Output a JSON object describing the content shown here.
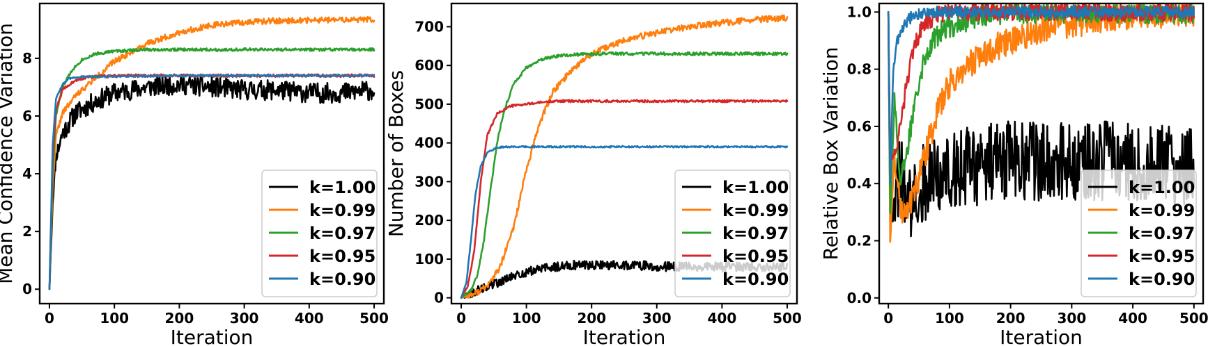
{
  "colors": {
    "k100": "#000000",
    "k099": "#ff7f0e",
    "k097": "#2ca02c",
    "k095": "#d62728",
    "k090": "#1f77b4"
  },
  "chart_data": [
    {
      "type": "line",
      "xlabel": "Iteration",
      "ylabel": "Mean Confidence Variation",
      "xlim": [
        -15,
        515
      ],
      "ylim": [
        -0.5,
        9.9
      ],
      "xticks": [
        0,
        100,
        200,
        300,
        400,
        500
      ],
      "yticks": [
        0,
        2,
        4,
        6,
        8
      ],
      "legend": "lower-right",
      "series": [
        {
          "name": "k=1.00",
          "color": "#000000",
          "noise": 0.35,
          "seed": 11,
          "points": [
            [
              0,
              0
            ],
            [
              5,
              3.0
            ],
            [
              10,
              4.6
            ],
            [
              20,
              5.4
            ],
            [
              40,
              6.1
            ],
            [
              70,
              6.5
            ],
            [
              100,
              6.8
            ],
            [
              150,
              7.0
            ],
            [
              200,
              7.1
            ],
            [
              250,
              7.0
            ],
            [
              300,
              6.9
            ],
            [
              350,
              6.9
            ],
            [
              400,
              6.8
            ],
            [
              450,
              6.8
            ],
            [
              500,
              6.9
            ]
          ]
        },
        {
          "name": "k=0.99",
          "color": "#ff7f0e",
          "noise": 0.1,
          "seed": 22,
          "points": [
            [
              0,
              0
            ],
            [
              5,
              3.5
            ],
            [
              10,
              5.3
            ],
            [
              20,
              6.1
            ],
            [
              40,
              6.7
            ],
            [
              70,
              7.3
            ],
            [
              100,
              7.9
            ],
            [
              150,
              8.5
            ],
            [
              200,
              8.9
            ],
            [
              250,
              9.15
            ],
            [
              300,
              9.25
            ],
            [
              350,
              9.3
            ],
            [
              400,
              9.32
            ],
            [
              450,
              9.33
            ],
            [
              500,
              9.35
            ]
          ]
        },
        {
          "name": "k=0.97",
          "color": "#2ca02c",
          "noise": 0.05,
          "seed": 33,
          "points": [
            [
              0,
              0
            ],
            [
              5,
              4.0
            ],
            [
              10,
              6.0
            ],
            [
              20,
              7.0
            ],
            [
              35,
              7.6
            ],
            [
              50,
              7.95
            ],
            [
              70,
              8.15
            ],
            [
              100,
              8.25
            ],
            [
              150,
              8.3
            ],
            [
              200,
              8.3
            ],
            [
              300,
              8.3
            ],
            [
              400,
              8.3
            ],
            [
              500,
              8.3
            ]
          ]
        },
        {
          "name": "k=0.95",
          "color": "#d62728",
          "noise": 0.05,
          "seed": 44,
          "points": [
            [
              0,
              0
            ],
            [
              5,
              4.5
            ],
            [
              10,
              6.2
            ],
            [
              20,
              6.9
            ],
            [
              40,
              7.25
            ],
            [
              60,
              7.35
            ],
            [
              80,
              7.38
            ],
            [
              150,
              7.4
            ],
            [
              300,
              7.4
            ],
            [
              500,
              7.4
            ]
          ]
        },
        {
          "name": "k=0.90",
          "color": "#1f77b4",
          "noise": 0.03,
          "seed": 55,
          "points": [
            [
              0,
              0
            ],
            [
              5,
              5.0
            ],
            [
              10,
              6.6
            ],
            [
              20,
              7.1
            ],
            [
              30,
              7.3
            ],
            [
              50,
              7.36
            ],
            [
              100,
              7.38
            ],
            [
              300,
              7.4
            ],
            [
              500,
              7.4
            ]
          ]
        }
      ]
    },
    {
      "type": "line",
      "xlabel": "Iteration",
      "ylabel": "Number of Boxes",
      "xlim": [
        -15,
        515
      ],
      "ylim": [
        -15,
        760
      ],
      "xticks": [
        0,
        100,
        200,
        300,
        400,
        500
      ],
      "yticks": [
        0,
        100,
        200,
        300,
        400,
        500,
        600,
        700
      ],
      "legend": "lower-right",
      "series": [
        {
          "name": "k=1.00",
          "color": "#000000",
          "noise": 12,
          "seed": 66,
          "points": [
            [
              0,
              0
            ],
            [
              20,
              15
            ],
            [
              50,
              35
            ],
            [
              80,
              55
            ],
            [
              120,
              75
            ],
            [
              170,
              85
            ],
            [
              250,
              85
            ],
            [
              320,
              80
            ],
            [
              400,
              80
            ],
            [
              500,
              80
            ]
          ]
        },
        {
          "name": "k=0.99",
          "color": "#ff7f0e",
          "noise": 8,
          "seed": 77,
          "points": [
            [
              0,
              0
            ],
            [
              20,
              10
            ],
            [
              40,
              30
            ],
            [
              60,
              80
            ],
            [
              80,
              180
            ],
            [
              100,
              330
            ],
            [
              120,
              450
            ],
            [
              140,
              530
            ],
            [
              170,
              590
            ],
            [
              200,
              630
            ],
            [
              250,
              665
            ],
            [
              300,
              685
            ],
            [
              350,
              700
            ],
            [
              400,
              710
            ],
            [
              450,
              718
            ],
            [
              500,
              722
            ]
          ]
        },
        {
          "name": "k=0.97",
          "color": "#2ca02c",
          "noise": 4,
          "seed": 88,
          "points": [
            [
              0,
              0
            ],
            [
              15,
              20
            ],
            [
              25,
              60
            ],
            [
              35,
              150
            ],
            [
              45,
              280
            ],
            [
              55,
              400
            ],
            [
              65,
              480
            ],
            [
              80,
              550
            ],
            [
              100,
              595
            ],
            [
              130,
              620
            ],
            [
              170,
              628
            ],
            [
              230,
              630
            ],
            [
              300,
              630
            ],
            [
              400,
              630
            ],
            [
              500,
              630
            ]
          ]
        },
        {
          "name": "k=0.95",
          "color": "#d62728",
          "noise": 3,
          "seed": 99,
          "points": [
            [
              0,
              0
            ],
            [
              10,
              30
            ],
            [
              20,
              120
            ],
            [
              30,
              300
            ],
            [
              40,
              420
            ],
            [
              55,
              475
            ],
            [
              75,
              495
            ],
            [
              100,
              500
            ],
            [
              140,
              508
            ],
            [
              200,
              508
            ],
            [
              300,
              508
            ],
            [
              500,
              508
            ]
          ]
        },
        {
          "name": "k=0.90",
          "color": "#1f77b4",
          "noise": 2,
          "seed": 111,
          "points": [
            [
              0,
              0
            ],
            [
              8,
              40
            ],
            [
              15,
              150
            ],
            [
              22,
              270
            ],
            [
              30,
              340
            ],
            [
              40,
              375
            ],
            [
              55,
              388
            ],
            [
              70,
              390
            ],
            [
              200,
              390
            ],
            [
              500,
              390
            ]
          ]
        }
      ]
    },
    {
      "type": "line",
      "xlabel": "Iteration",
      "ylabel": "Relative Box Variation",
      "xlim": [
        -15,
        515
      ],
      "ylim": [
        -0.02,
        1.03
      ],
      "xticks": [
        0,
        100,
        200,
        300,
        400,
        500
      ],
      "yticks": [
        "0.0",
        "0.2",
        "0.4",
        "0.6",
        "0.8",
        "1.0"
      ],
      "legend": "lower-right",
      "series": [
        {
          "name": "k=1.00",
          "color": "#000000",
          "noise": 0.14,
          "seed": 121,
          "points": [
            [
              0,
              1.0
            ],
            [
              3,
              0.3
            ],
            [
              10,
              0.35
            ],
            [
              20,
              0.45
            ],
            [
              30,
              0.3
            ],
            [
              50,
              0.4
            ],
            [
              100,
              0.45
            ],
            [
              200,
              0.48
            ],
            [
              300,
              0.48
            ],
            [
              400,
              0.48
            ],
            [
              500,
              0.45
            ]
          ]
        },
        {
          "name": "k=0.99",
          "color": "#ff7f0e",
          "noise": 0.05,
          "seed": 131,
          "points": [
            [
              0,
              1.0
            ],
            [
              3,
              0.2
            ],
            [
              10,
              0.5
            ],
            [
              20,
              0.3
            ],
            [
              40,
              0.35
            ],
            [
              60,
              0.5
            ],
            [
              80,
              0.65
            ],
            [
              100,
              0.75
            ],
            [
              150,
              0.85
            ],
            [
              200,
              0.9
            ],
            [
              250,
              0.94
            ],
            [
              300,
              0.96
            ],
            [
              400,
              0.99
            ],
            [
              500,
              1.0
            ]
          ]
        },
        {
          "name": "k=0.97",
          "color": "#2ca02c",
          "noise": 0.04,
          "seed": 141,
          "points": [
            [
              0,
              1.0
            ],
            [
              3,
              0.3
            ],
            [
              10,
              0.7
            ],
            [
              20,
              0.4
            ],
            [
              30,
              0.5
            ],
            [
              45,
              0.72
            ],
            [
              60,
              0.85
            ],
            [
              80,
              0.92
            ],
            [
              100,
              0.95
            ],
            [
              150,
              0.99
            ],
            [
              200,
              1.0
            ],
            [
              500,
              1.0
            ]
          ]
        },
        {
          "name": "k=0.95",
          "color": "#d62728",
          "noise": 0.03,
          "seed": 151,
          "points": [
            [
              0,
              1.0
            ],
            [
              3,
              0.5
            ],
            [
              10,
              0.5
            ],
            [
              20,
              0.6
            ],
            [
              30,
              0.75
            ],
            [
              45,
              0.9
            ],
            [
              60,
              0.96
            ],
            [
              80,
              0.99
            ],
            [
              100,
              1.0
            ],
            [
              500,
              1.0
            ]
          ]
        },
        {
          "name": "k=0.90",
          "color": "#1f77b4",
          "noise": 0.02,
          "seed": 161,
          "points": [
            [
              0,
              1.0
            ],
            [
              3,
              0.4
            ],
            [
              8,
              0.8
            ],
            [
              15,
              0.9
            ],
            [
              25,
              0.95
            ],
            [
              40,
              0.99
            ],
            [
              60,
              1.0
            ],
            [
              500,
              1.0
            ]
          ]
        }
      ]
    }
  ]
}
